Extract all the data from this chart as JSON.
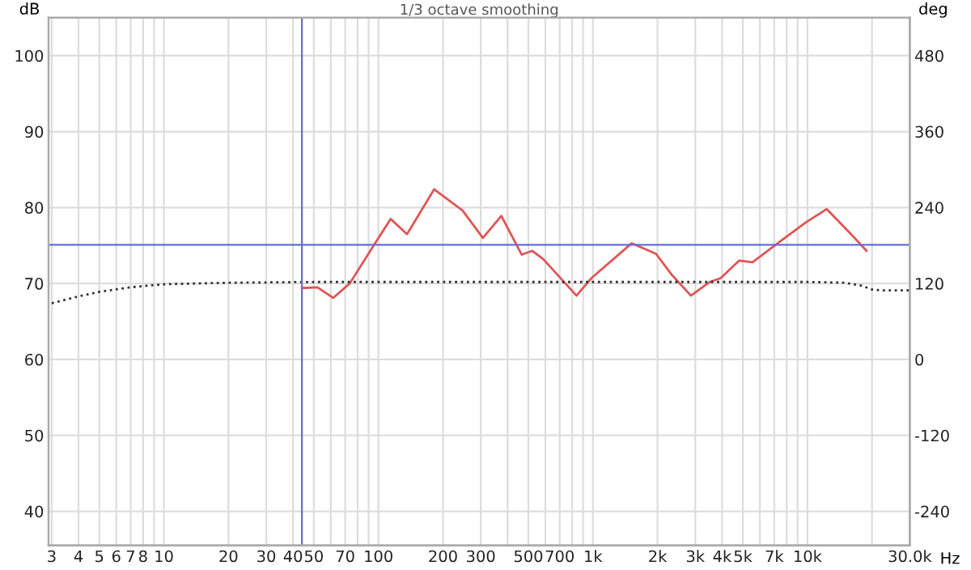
{
  "chart_data": {
    "type": "line",
    "title": "1/3 octave smoothing",
    "ylabel": "dB",
    "y2label": "deg",
    "xlabel": "Hz",
    "log": "x",
    "grid": true,
    "xlim": [
      2.9,
      30000
    ],
    "ylim": [
      35.5,
      105
    ],
    "y2lim": [
      -294,
      540
    ],
    "xticks": [
      3,
      4,
      5,
      6,
      7,
      8,
      {
        "value": 9,
        "label": null
      },
      10,
      20,
      30,
      40,
      50,
      {
        "value": 60,
        "label": null
      },
      70,
      {
        "value": 80,
        "label": null
      },
      {
        "value": 90,
        "label": null
      },
      100,
      200,
      300,
      {
        "value": 400,
        "label": null
      },
      500,
      {
        "value": 600,
        "label": null
      },
      700,
      {
        "value": 800,
        "label": null
      },
      {
        "value": 900,
        "label": null
      },
      {
        "value": 1000,
        "label": "1k"
      },
      {
        "value": 2000,
        "label": "2k"
      },
      {
        "value": 3000,
        "label": "3k"
      },
      {
        "value": 4000,
        "label": "4k"
      },
      {
        "value": 5000,
        "label": "5k"
      },
      {
        "value": 6000,
        "label": null
      },
      {
        "value": 7000,
        "label": "7k"
      },
      {
        "value": 8000,
        "label": null
      },
      {
        "value": 9000,
        "label": null
      },
      {
        "value": 10000,
        "label": "10k"
      },
      {
        "value": 20000,
        "label": null
      },
      {
        "value": 30000,
        "label": "30.0k"
      }
    ],
    "yticks": [
      40,
      50,
      60,
      70,
      80,
      90,
      100
    ],
    "y2ticks": [
      -240,
      -120,
      0,
      120,
      240,
      360,
      480
    ],
    "ref_lines": [
      {
        "axis": "x",
        "value": 44,
        "color": "#6b6bd6"
      },
      {
        "axis": "y",
        "value": 75.1,
        "color": "#6b6bd6"
      }
    ],
    "series": [
      {
        "color": "#e05555",
        "line_style": "solid",
        "x": [
          44,
          52,
          61.5,
          73.5,
          95,
          114,
          136,
          182,
          247,
          307,
          374,
          465,
          522,
          587,
          838,
          984,
          1517,
          1969,
          2338,
          2862,
          3509,
          3938,
          4800,
          5545,
          7840,
          9900,
          12300,
          15700,
          18850
        ],
        "values": [
          69.4,
          69.5,
          68.1,
          70.0,
          75.0,
          78.5,
          76.5,
          82.4,
          79.6,
          76.0,
          78.9,
          73.8,
          74.3,
          73.2,
          68.4,
          70.7,
          75.3,
          73.9,
          71.1,
          68.4,
          70.2,
          70.7,
          73.0,
          72.8,
          76.0,
          78.1,
          79.8,
          76.7,
          74.3
        ]
      },
      {
        "color": "#333333",
        "line_style": "dotted",
        "x": [
          3,
          4,
          5,
          7,
          10,
          20,
          50,
          1000,
          10000,
          15000,
          18000,
          20000,
          22000,
          30000
        ],
        "values": [
          67.4,
          68.3,
          68.9,
          69.5,
          69.9,
          70.1,
          70.2,
          70.2,
          70.2,
          70.1,
          69.7,
          69.2,
          69.1,
          69.1
        ]
      }
    ]
  }
}
